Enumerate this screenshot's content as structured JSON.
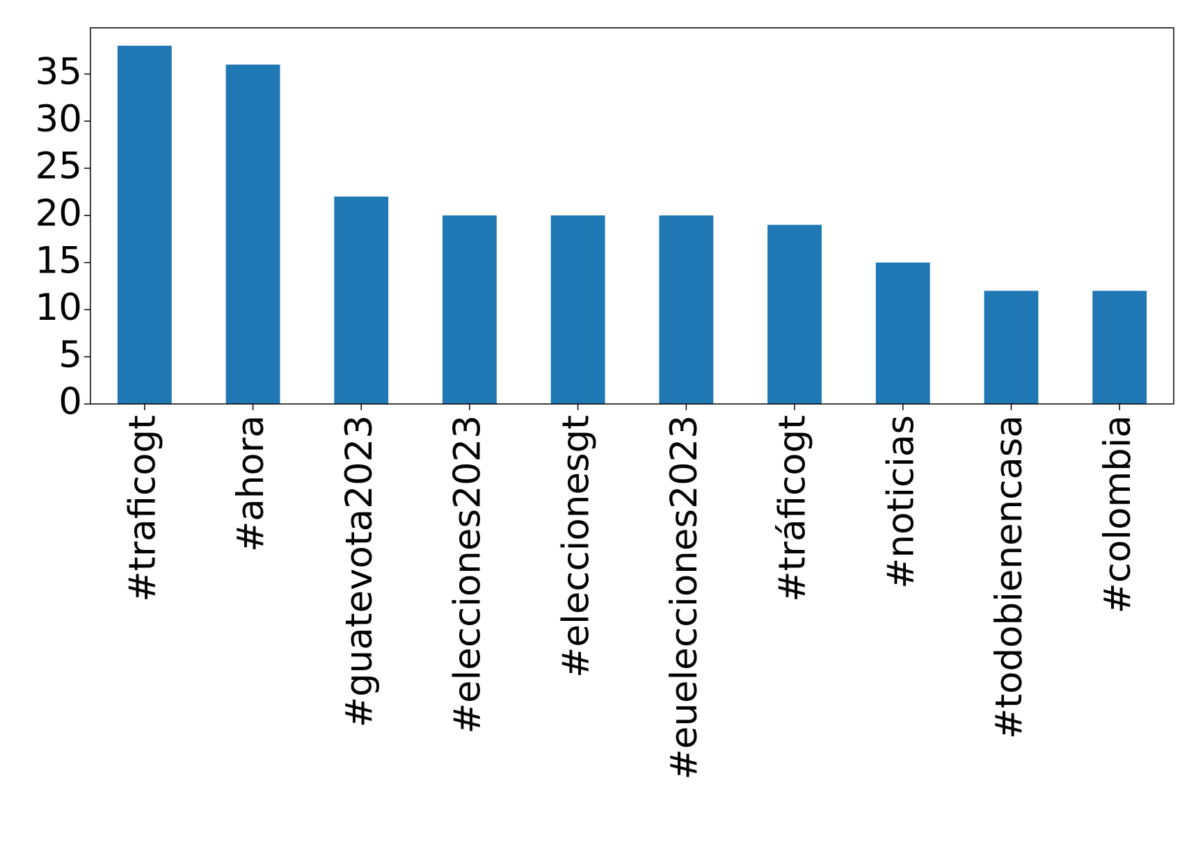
{
  "chart_data": {
    "type": "bar",
    "categories": [
      "#traficogt",
      "#ahora",
      "#guatevota2023",
      "#elecciones2023",
      "#eleccionesgt",
      "#euelecciones2023",
      "#tráficogt",
      "#noticias",
      "#todobienencasa",
      "#colombia"
    ],
    "values": [
      38,
      36,
      22,
      20,
      20,
      20,
      19,
      15,
      12,
      12
    ],
    "color": "#1f77b4",
    "ylim": [
      0,
      39.9
    ],
    "yticks": [
      0,
      5,
      10,
      15,
      20,
      25,
      30,
      35
    ],
    "grid": false
  }
}
